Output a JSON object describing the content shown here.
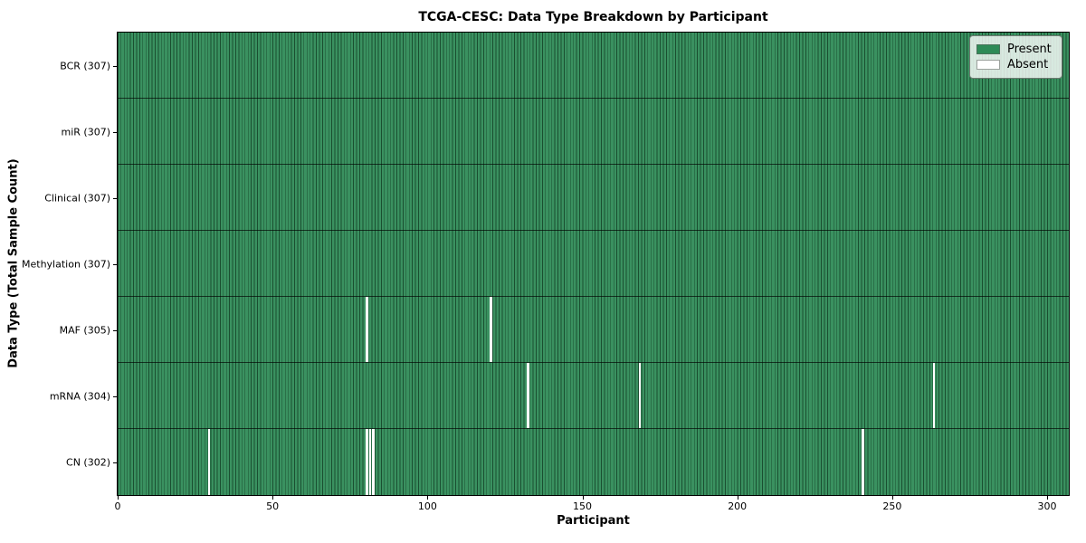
{
  "chart_data": {
    "type": "heatmap",
    "title": "TCGA-CESC: Data Type Breakdown by Participant",
    "xlabel": "Participant",
    "ylabel": "Data Type (Total Sample Count)",
    "n_participants": 307,
    "x_ticks": [
      0,
      50,
      100,
      150,
      200,
      250,
      300
    ],
    "xlim": [
      0,
      307
    ],
    "grid": false,
    "legend_position": "upper right",
    "colors": {
      "present": "#2e8b57",
      "present_fill": "#3a9160",
      "absent": "#ffffff",
      "cell_edge": "rgba(0,25,10,0.55)"
    },
    "legend": [
      {
        "label": "Present",
        "color": "#2e8b57"
      },
      {
        "label": "Absent",
        "color": "#ffffff"
      }
    ],
    "rows": [
      {
        "key": "bcr",
        "label": "BCR (307)",
        "data_type": "BCR",
        "present_count": 307,
        "absent_participants": []
      },
      {
        "key": "mir",
        "label": "miR (307)",
        "data_type": "miR",
        "present_count": 307,
        "absent_participants": []
      },
      {
        "key": "clinical",
        "label": "Clinical (307)",
        "data_type": "Clinical",
        "present_count": 307,
        "absent_participants": []
      },
      {
        "key": "methylation",
        "label": "Methylation (307)",
        "data_type": "Methylation",
        "present_count": 307,
        "absent_participants": []
      },
      {
        "key": "maf",
        "label": "MAF (305)",
        "data_type": "MAF",
        "present_count": 305,
        "absent_participants": [
          80,
          120
        ]
      },
      {
        "key": "mrna",
        "label": "mRNA (304)",
        "data_type": "mRNA",
        "present_count": 304,
        "absent_participants": [
          132,
          168,
          263
        ]
      },
      {
        "key": "cn",
        "label": "CN (302)",
        "data_type": "CN",
        "present_count": 302,
        "absent_participants": [
          29,
          80,
          81,
          82,
          240
        ]
      }
    ]
  }
}
